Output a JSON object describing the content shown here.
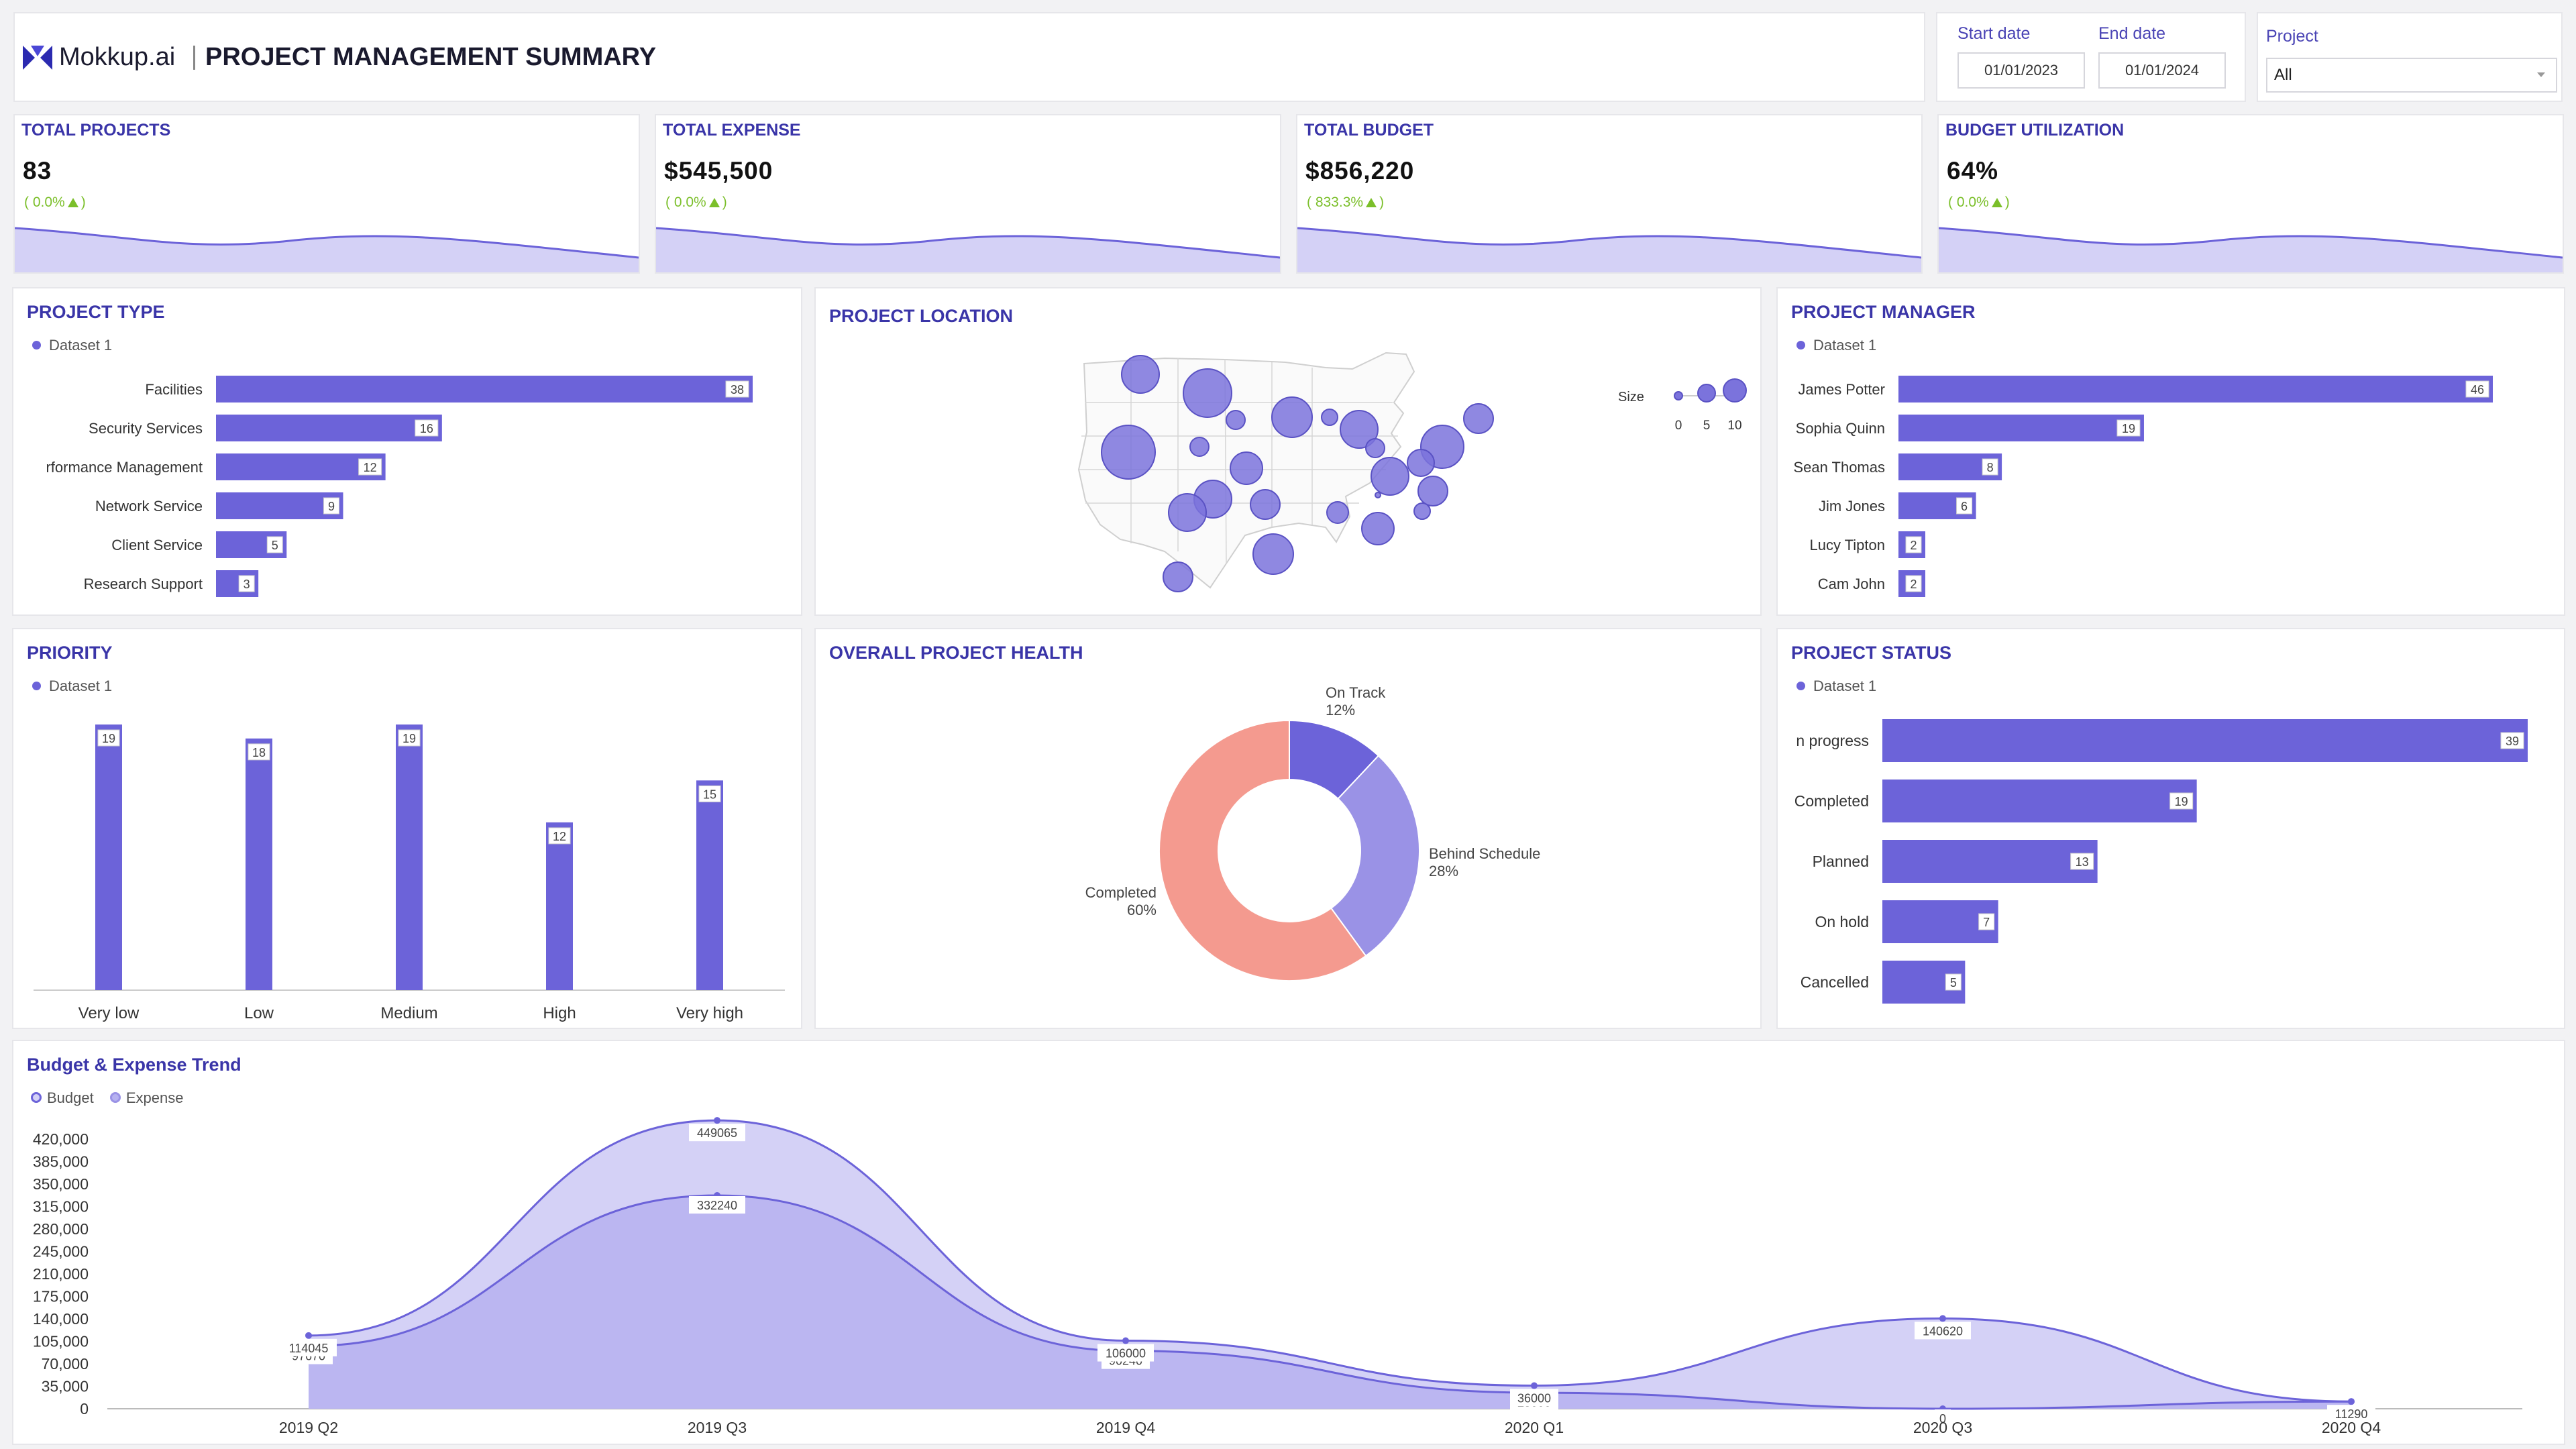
{
  "header": {
    "brand": "Mokkup.ai",
    "title": "PROJECT MANAGEMENT SUMMARY"
  },
  "filters": {
    "start_label": "Start date",
    "start_value": "01/01/2023",
    "end_label": "End date",
    "end_value": "01/01/2024",
    "project_label": "Project",
    "project_value": "All"
  },
  "kpis": [
    {
      "title": "TOTAL PROJECTS",
      "value": "83",
      "change": "( 0.0%",
      "close": ")"
    },
    {
      "title": "TOTAL EXPENSE",
      "value": "$545,500",
      "change": "( 0.0%",
      "close": ")"
    },
    {
      "title": "TOTAL BUDGET",
      "value": "$856,220",
      "change": "( 833.3%",
      "close": ")"
    },
    {
      "title": "BUDGET UTILIZATION",
      "value": "64%",
      "change": "( 0.0%",
      "close": ")"
    }
  ],
  "colors": {
    "accent": "#6c63d9",
    "title": "#3a35a8",
    "positive": "#7bbf2a",
    "completed": "#f49a8f",
    "behind": "#9a92e6",
    "area_light": "#d4d1f6",
    "area_dark": "#b6b1f0"
  },
  "project_type": {
    "title": "PROJECT TYPE",
    "legend": "Dataset 1",
    "categories": [
      "Facilities",
      "Security Services",
      "rformance Management",
      "Network Service",
      "Client Service",
      "Research Support"
    ],
    "values": [
      38,
      16,
      12,
      9,
      5,
      3
    ]
  },
  "project_location": {
    "title": "PROJECT LOCATION",
    "size_label": "Size",
    "size_ticks": [
      "0",
      "5",
      "10"
    ]
  },
  "project_manager": {
    "title": "PROJECT MANAGER",
    "legend": "Dataset 1",
    "categories": [
      "James Potter",
      "Sophia Quinn",
      "Sean Thomas",
      "Jim Jones",
      "Lucy Tipton",
      "Cam John"
    ],
    "values": [
      46,
      19,
      8,
      6,
      2,
      2
    ]
  },
  "priority": {
    "title": "PRIORITY",
    "legend": "Dataset 1",
    "categories": [
      "Very low",
      "Low",
      "Medium",
      "High",
      "Very high"
    ],
    "values": [
      19,
      18,
      19,
      12,
      15
    ]
  },
  "health": {
    "title": "OVERALL PROJECT HEALTH",
    "slices": [
      {
        "name": "On Track",
        "pct": "12%",
        "value": 12,
        "color": "#6c63d9"
      },
      {
        "name": "Behind Schedule",
        "pct": "28%",
        "value": 28,
        "color": "#9a92e6"
      },
      {
        "name": "Completed",
        "pct": "60%",
        "value": 60,
        "color": "#f49a8f"
      }
    ]
  },
  "project_status": {
    "title": "PROJECT STATUS",
    "legend": "Dataset 1",
    "categories": [
      "n progress",
      "Completed",
      "Planned",
      "On hold",
      "Cancelled"
    ],
    "values": [
      39,
      19,
      13,
      7,
      5
    ]
  },
  "trend": {
    "title": "Budget & Expense Trend",
    "legend_budget": "Budget",
    "legend_expense": "Expense",
    "x": [
      "2019 Q2",
      "2019 Q3",
      "2019 Q4",
      "2020 Q1",
      "2020 Q3",
      "2020 Q4"
    ],
    "budget": [
      114045,
      449065,
      106000,
      36000,
      140620,
      11290
    ],
    "expense": [
      97670,
      332240,
      90240,
      25000,
      0,
      11290
    ],
    "budget_labels": [
      "114045",
      "449065",
      "106000",
      "36000",
      "140620",
      "11290"
    ],
    "expense_labels": [
      "97670",
      "332240",
      "90240",
      "25000",
      "0",
      ""
    ],
    "y_ticks": [
      "420,000",
      "385,000",
      "350,000",
      "315,000",
      "280,000",
      "245,000",
      "210,000",
      "175,000",
      "140,000",
      "105,000",
      "70,000",
      "35,000",
      "0"
    ],
    "ylim": [
      0,
      420000
    ]
  },
  "chart_data": [
    {
      "type": "bar",
      "title": "PROJECT TYPE",
      "categories": [
        "Facilities",
        "Security Services",
        "rformance Management",
        "Network Service",
        "Client Service",
        "Research Support"
      ],
      "series": [
        {
          "name": "Dataset 1",
          "values": [
            38,
            16,
            12,
            9,
            5,
            3
          ]
        }
      ]
    },
    {
      "type": "bar",
      "title": "PROJECT MANAGER",
      "categories": [
        "James Potter",
        "Sophia Quinn",
        "Sean Thomas",
        "Jim Jones",
        "Lucy Tipton",
        "Cam John"
      ],
      "series": [
        {
          "name": "Dataset 1",
          "values": [
            46,
            19,
            8,
            6,
            2,
            2
          ]
        }
      ]
    },
    {
      "type": "bar",
      "title": "PRIORITY",
      "categories": [
        "Very low",
        "Low",
        "Medium",
        "High",
        "Very high"
      ],
      "series": [
        {
          "name": "Dataset 1",
          "values": [
            19,
            18,
            19,
            12,
            15
          ]
        }
      ]
    },
    {
      "type": "pie",
      "title": "OVERALL PROJECT HEALTH",
      "categories": [
        "On Track",
        "Behind Schedule",
        "Completed"
      ],
      "values": [
        12,
        28,
        60
      ]
    },
    {
      "type": "bar",
      "title": "PROJECT STATUS",
      "categories": [
        "n progress",
        "Completed",
        "Planned",
        "On hold",
        "Cancelled"
      ],
      "series": [
        {
          "name": "Dataset 1",
          "values": [
            39,
            19,
            13,
            7,
            5
          ]
        }
      ]
    },
    {
      "type": "area",
      "title": "Budget & Expense Trend",
      "categories": [
        "2019 Q2",
        "2019 Q3",
        "2019 Q4",
        "2020 Q1",
        "2020 Q3",
        "2020 Q4"
      ],
      "series": [
        {
          "name": "Budget",
          "values": [
            114045,
            449065,
            106000,
            36000,
            140620,
            11290
          ]
        },
        {
          "name": "Expense",
          "values": [
            97670,
            332240,
            90240,
            25000,
            0,
            11290
          ]
        }
      ],
      "ylim": [
        0,
        420000
      ]
    }
  ]
}
